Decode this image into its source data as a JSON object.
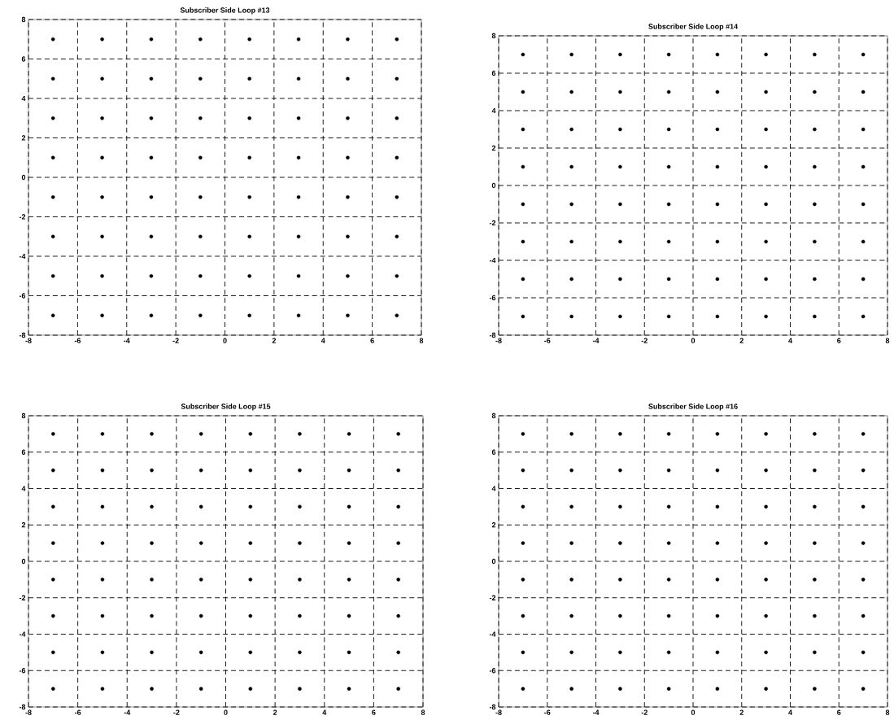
{
  "chart_data": [
    {
      "type": "scatter",
      "title": "Subscriber Side Loop #13",
      "x": [
        -7,
        -5,
        -3,
        -1,
        1,
        3,
        5,
        7,
        -7,
        -5,
        -3,
        -1,
        1,
        3,
        5,
        7,
        -7,
        -5,
        -3,
        -1,
        1,
        3,
        5,
        7,
        -7,
        -5,
        -3,
        -1,
        1,
        3,
        5,
        7,
        -7,
        -5,
        -3,
        -1,
        1,
        3,
        5,
        7,
        -7,
        -5,
        -3,
        -1,
        1,
        3,
        5,
        7,
        -7,
        -5,
        -3,
        -1,
        1,
        3,
        5,
        7,
        -7,
        -5,
        -3,
        -1,
        1,
        3,
        5,
        7
      ],
      "values": [
        7,
        7,
        7,
        7,
        7,
        7,
        7,
        7,
        5,
        5,
        5,
        5,
        5,
        5,
        5,
        5,
        3,
        3,
        3,
        3,
        3,
        3,
        3,
        3,
        1,
        1,
        1,
        1,
        1,
        1,
        1,
        1,
        -1,
        -1,
        -1,
        -1,
        -1,
        -1,
        -1,
        -1,
        -3,
        -3,
        -3,
        -3,
        -3,
        -3,
        -3,
        -3,
        -5,
        -5,
        -5,
        -5,
        -5,
        -5,
        -5,
        -5,
        -7,
        -7,
        -7,
        -7,
        -7,
        -7,
        -7,
        -7
      ],
      "color": "#000000",
      "marker": "circle",
      "grid": true,
      "xlim": [
        -8,
        8
      ],
      "ylim": [
        -8,
        8
      ],
      "xticks": [
        -8,
        -6,
        -4,
        -2,
        0,
        2,
        4,
        6,
        8
      ],
      "yticks": [
        -8,
        -6,
        -4,
        -2,
        0,
        2,
        4,
        6,
        8
      ]
    },
    {
      "type": "scatter",
      "title": "Subscriber Side Loop #14",
      "x": [
        -7,
        -5,
        -3,
        -1,
        1,
        3,
        5,
        7,
        -7,
        -5,
        -3,
        -1,
        1,
        3,
        5,
        7,
        -7,
        -5,
        -3,
        -1,
        1,
        3,
        5,
        7,
        -7,
        -5,
        -3,
        -1,
        1,
        3,
        5,
        7,
        -7,
        -5,
        -3,
        -1,
        1,
        3,
        5,
        7,
        -7,
        -5,
        -3,
        -1,
        1,
        3,
        5,
        7,
        -7,
        -5,
        -3,
        -1,
        1,
        3,
        5,
        7,
        -7,
        -5,
        -3,
        -1,
        1,
        3,
        5,
        7
      ],
      "values": [
        7,
        7,
        7,
        7,
        7,
        7,
        7,
        7,
        5,
        5,
        5,
        5,
        5,
        5,
        5,
        5,
        3,
        3,
        3,
        3,
        3,
        3,
        3,
        3,
        1,
        1,
        1,
        1,
        1,
        1,
        1,
        1,
        -1,
        -1,
        -1,
        -1,
        -1,
        -1,
        -1,
        -1,
        -3,
        -3,
        -3,
        -3,
        -3,
        -3,
        -3,
        -3,
        -5,
        -5,
        -5,
        -5,
        -5,
        -5,
        -5,
        -5,
        -7,
        -7,
        -7,
        -7,
        -7,
        -7,
        -7,
        -7
      ],
      "color": "#000000",
      "marker": "circle",
      "grid": true,
      "xlim": [
        -8,
        8
      ],
      "ylim": [
        -8,
        8
      ],
      "xticks": [
        -8,
        -6,
        -4,
        -2,
        0,
        2,
        4,
        6,
        8
      ],
      "yticks": [
        -8,
        -6,
        -4,
        -2,
        0,
        2,
        4,
        6,
        8
      ]
    },
    {
      "type": "scatter",
      "title": "Subscriber Side Loop #15",
      "x": [
        -7,
        -5,
        -3,
        -1,
        1,
        3,
        5,
        7,
        -7,
        -5,
        -3,
        -1,
        1,
        3,
        5,
        7,
        -7,
        -5,
        -3,
        -1,
        1,
        3,
        5,
        7,
        -7,
        -5,
        -3,
        -1,
        1,
        3,
        5,
        7,
        -7,
        -5,
        -3,
        -1,
        1,
        3,
        5,
        7,
        -7,
        -5,
        -3,
        -1,
        1,
        3,
        5,
        7,
        -7,
        -5,
        -3,
        -1,
        1,
        3,
        5,
        7,
        -7,
        -5,
        -3,
        -1,
        1,
        3,
        5,
        7
      ],
      "values": [
        7,
        7,
        7,
        7,
        7,
        7,
        7,
        7,
        5,
        5,
        5,
        5,
        5,
        5,
        5,
        5,
        3,
        3,
        3,
        3,
        3,
        3,
        3,
        3,
        1,
        1,
        1,
        1,
        1,
        1,
        1,
        1,
        -1,
        -1,
        -1,
        -1,
        -1,
        -1,
        -1,
        -1,
        -3,
        -3,
        -3,
        -3,
        -3,
        -3,
        -3,
        -3,
        -5,
        -5,
        -5,
        -5,
        -5,
        -5,
        -5,
        -5,
        -7,
        -7,
        -7,
        -7,
        -7,
        -7,
        -7,
        -7
      ],
      "color": "#000000",
      "marker": "circle",
      "grid": true,
      "xlim": [
        -8,
        8
      ],
      "ylim": [
        -8,
        8
      ],
      "xticks": [
        -8,
        -6,
        -4,
        -2,
        0,
        2,
        4,
        6,
        8
      ],
      "yticks": [
        -8,
        -6,
        -4,
        -2,
        0,
        2,
        4,
        6,
        8
      ]
    },
    {
      "type": "scatter",
      "title": "Subscriber Side Loop #16",
      "x": [
        -7,
        -5,
        -3,
        -1,
        1,
        3,
        5,
        7,
        -7,
        -5,
        -3,
        -1,
        1,
        3,
        5,
        7,
        -7,
        -5,
        -3,
        -1,
        1,
        3,
        5,
        7,
        -7,
        -5,
        -3,
        -1,
        1,
        3,
        5,
        7,
        -7,
        -5,
        -3,
        -1,
        1,
        3,
        5,
        7,
        -7,
        -5,
        -3,
        -1,
        1,
        3,
        5,
        7,
        -7,
        -5,
        -3,
        -1,
        1,
        3,
        5,
        7,
        -7,
        -5,
        -3,
        -1,
        1,
        3,
        5,
        7
      ],
      "values": [
        7,
        7,
        7,
        7,
        7,
        7,
        7,
        7,
        5,
        5,
        5,
        5,
        5,
        5,
        5,
        5,
        3,
        3,
        3,
        3,
        3,
        3,
        3,
        3,
        1,
        1,
        1,
        1,
        1,
        1,
        1,
        1,
        -1,
        -1,
        -1,
        -1,
        -1,
        -1,
        -1,
        -1,
        -3,
        -3,
        -3,
        -3,
        -3,
        -3,
        -3,
        -3,
        -5,
        -5,
        -5,
        -5,
        -5,
        -5,
        -5,
        -5,
        -7,
        -7,
        -7,
        -7,
        -7,
        -7,
        -7,
        -7
      ],
      "color": "#000000",
      "marker": "circle",
      "grid": true,
      "xlim": [
        -8,
        8
      ],
      "ylim": [
        -8,
        8
      ],
      "xticks": [
        -8,
        -6,
        -4,
        -2,
        0,
        2,
        4,
        6,
        8
      ],
      "yticks": [
        -8,
        -6,
        -4,
        -2,
        0,
        2,
        4,
        6,
        8
      ]
    }
  ]
}
